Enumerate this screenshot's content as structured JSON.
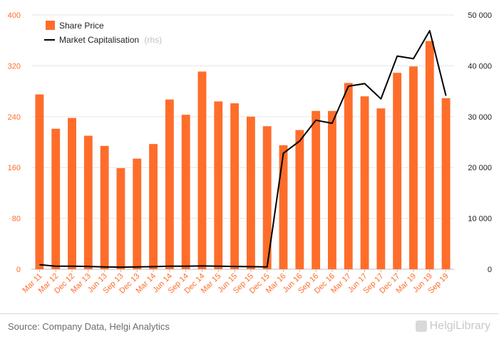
{
  "chart_data": {
    "type": "bar",
    "categories": [
      "Mar 11",
      "Mar 12",
      "Dec 12",
      "Mar 13",
      "Jun 13",
      "Sep 13",
      "Dec 13",
      "Mar 14",
      "Jun 14",
      "Sep 14",
      "Dec 14",
      "Mar 15",
      "Jun 15",
      "Sep 15",
      "Dec 15",
      "Mar 16",
      "Jun 16",
      "Sep 16",
      "Dec 16",
      "Mar 17",
      "Jun 17",
      "Sep 17",
      "Dec 17",
      "Mar 19",
      "Jun 19",
      "Sep 19"
    ],
    "series": [
      {
        "name": "Share Price",
        "type": "bar",
        "axis": "left",
        "color": "#ff6d2a",
        "values": [
          275,
          221,
          238,
          210,
          194,
          159,
          174,
          197,
          267,
          243,
          311,
          264,
          261,
          240,
          225,
          195,
          219,
          249,
          249,
          293,
          272,
          253,
          309,
          319,
          359,
          269
        ]
      },
      {
        "name": "Market Capitalisation",
        "name_suffix": "(rhs)",
        "type": "line",
        "axis": "right",
        "color": "#000000",
        "values": [
          900,
          600,
          600,
          550,
          450,
          400,
          450,
          500,
          600,
          600,
          650,
          600,
          550,
          500,
          450,
          22800,
          25200,
          29300,
          28700,
          36000,
          36500,
          33500,
          41900,
          41400,
          46900,
          34100
        ]
      }
    ],
    "y_left": {
      "min": 0,
      "max": 400,
      "ticks": [
        "0",
        "80",
        "160",
        "240",
        "320",
        "400"
      ]
    },
    "y_right": {
      "min": 0,
      "max": 50000,
      "ticks": [
        "0",
        "10 000",
        "20 000",
        "30 000",
        "40 000",
        "50 000"
      ]
    },
    "grid": true,
    "legend": "top-left"
  },
  "footer": {
    "source": "Source: Company Data, Helgi Analytics",
    "logo_text": "HelgiLibrary"
  }
}
